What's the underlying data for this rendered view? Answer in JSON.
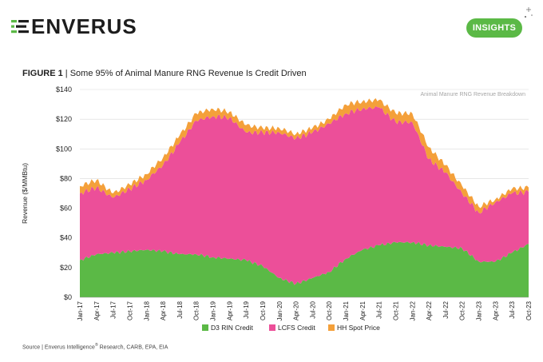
{
  "header": {
    "logo_text": "ENVERUS",
    "insights_label": "INSIGHTS"
  },
  "figure": {
    "label": "FIGURE 1",
    "separator": " | ",
    "caption": "Some 95% of Animal Manure RNG Revenue Is Credit Driven"
  },
  "source": {
    "prefix": "Source | Enverus Intelligence",
    "reg": "®",
    "suffix": " Research, CARB, EPA, EIA"
  },
  "colors": {
    "brand_green": "#5bb946",
    "d3": "#5bb946",
    "lcfs": "#ec4f99",
    "hh": "#f4a03a"
  },
  "chart_data": {
    "type": "area",
    "stacked": true,
    "title": "Animal Manure RNG Revenue Breakdown",
    "ylabel": "Revenue ($/MMBtu)",
    "xlabel": "",
    "ylim": [
      0,
      140
    ],
    "yticks": [
      0,
      20,
      40,
      60,
      80,
      100,
      120,
      140
    ],
    "ytick_labels": [
      "$0",
      "$20",
      "$40",
      "$60",
      "$80",
      "$100",
      "$120",
      "$140"
    ],
    "grid": true,
    "legend_position": "bottom",
    "xtick_labels": [
      "Jan-17",
      "Apr-17",
      "Jul-17",
      "Oct-17",
      "Jan-18",
      "Apr-18",
      "Jul-18",
      "Oct-18",
      "Jan-19",
      "Apr-19",
      "Jul-19",
      "Oct-19",
      "Jan-20",
      "Apr-20",
      "Jul-20",
      "Oct-20",
      "Jan-21",
      "Apr-21",
      "Jul-21",
      "Oct-21",
      "Jan-22",
      "Apr-22",
      "Jul-22",
      "Oct-22",
      "Jan-23",
      "Apr-23",
      "Jul-23",
      "Oct-23"
    ],
    "series": [
      {
        "name": "D3 RIN Credit",
        "color": "#5bb946",
        "values": [
          25,
          29,
          30,
          31,
          32,
          31,
          29,
          29,
          27,
          26,
          25,
          21,
          13,
          9,
          13,
          17,
          26,
          32,
          35,
          37,
          37,
          35,
          34,
          33,
          24,
          24,
          30,
          36
        ]
      },
      {
        "name": "LCFS Credit",
        "color": "#ec4f99",
        "values": [
          45,
          45,
          37,
          42,
          47,
          58,
          75,
          90,
          95,
          95,
          86,
          90,
          98,
          98,
          98,
          100,
          98,
          95,
          93,
          81,
          81,
          58,
          50,
          37,
          33,
          40,
          40,
          35
        ]
      },
      {
        "name": "HH Spot Price",
        "color": "#f4a03a",
        "values": [
          5,
          5,
          3,
          3,
          4,
          5,
          5,
          5,
          5,
          4,
          5,
          3,
          3,
          3,
          3,
          3,
          6,
          5,
          5,
          6,
          6,
          8,
          5,
          5,
          4,
          2,
          3,
          3
        ]
      }
    ]
  }
}
